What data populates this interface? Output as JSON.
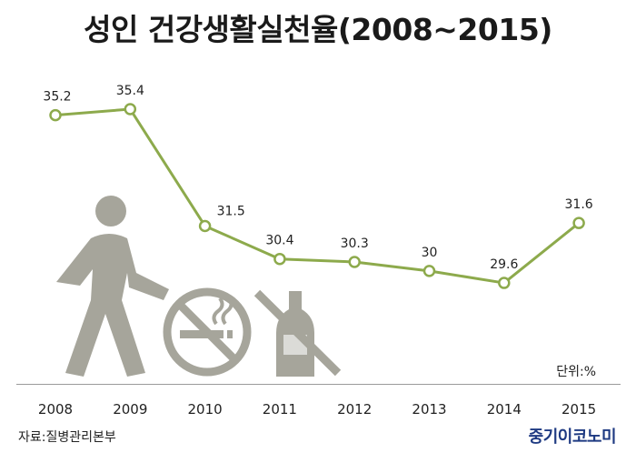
{
  "chart_data": {
    "type": "line",
    "title": "성인 건강생활실천율(2008~2015)",
    "x": [
      "2008",
      "2009",
      "2010",
      "2011",
      "2012",
      "2013",
      "2014",
      "2015"
    ],
    "series": [
      {
        "values": [
          35.2,
          35.4,
          31.5,
          30.4,
          30.3,
          30,
          29.6,
          31.6
        ]
      }
    ],
    "data_labels": [
      "35.2",
      "35.4",
      "31.5",
      "30.4",
      "30.3",
      "30",
      "29.6",
      "31.6"
    ],
    "unit": "단위:%",
    "grid": false,
    "legend": "none",
    "line_color": "#8daa4c"
  },
  "source": "자료:질병관리본부",
  "brand": "중기이코노미",
  "icons": [
    "walking-person-icon",
    "no-smoking-icon",
    "no-alcohol-icon"
  ],
  "icon_color": "#a6a59b"
}
